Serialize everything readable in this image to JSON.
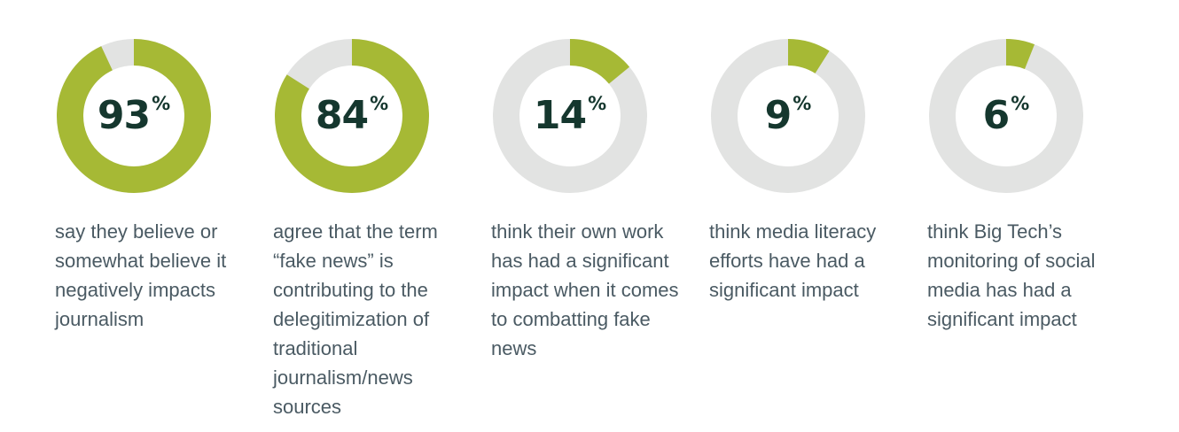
{
  "colors": {
    "accent": "#a6b935",
    "track": "#e2e3e2",
    "value_text": "#15372e",
    "caption_text": "#4a5a63"
  },
  "chart_data": {
    "type": "donut",
    "unit": "%",
    "items": [
      {
        "value": 93,
        "percent_sign": "%",
        "caption": "say they believe or somewhat believe it negatively impacts journalism"
      },
      {
        "value": 84,
        "percent_sign": "%",
        "caption": "agree that the term “fake news” is contributing to the delegitimization of traditional journalism/news sources"
      },
      {
        "value": 14,
        "percent_sign": "%",
        "caption": "think their own work has had a significant impact when it comes to combatting fake news"
      },
      {
        "value": 9,
        "percent_sign": "%",
        "caption": "think media literacy efforts have had a significant impact"
      },
      {
        "value": 6,
        "percent_sign": "%",
        "caption": "think Big Tech’s monitoring of social media has had a significant impact"
      }
    ]
  }
}
